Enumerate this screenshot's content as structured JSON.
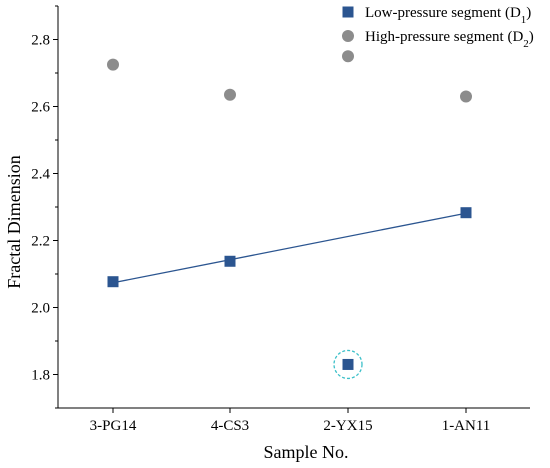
{
  "chart_data": {
    "type": "scatter",
    "categories": [
      "3-PG14",
      "4-CS3",
      "2-YX15",
      "1-AN11"
    ],
    "xlabel": "Sample No.",
    "ylabel": "Fractal Dimension",
    "ylim": [
      1.7,
      2.9
    ],
    "yticks": [
      1.8,
      2.0,
      2.2,
      2.4,
      2.6,
      2.8
    ],
    "grid": false,
    "legend_position": "top-right",
    "series": [
      {
        "name": "Low-pressure segment",
        "name_sub": "1",
        "marker": "square",
        "color": "#2b5590",
        "values": [
          2.077,
          2.138,
          1.83,
          2.283
        ]
      },
      {
        "name": "High-pressure segment",
        "name_sub": "2",
        "marker": "circle",
        "color": "#8c8c8c",
        "values": [
          2.725,
          2.635,
          2.75,
          2.63
        ]
      }
    ],
    "trend_line": {
      "series": 0,
      "color": "#2b5590",
      "exclude_index": 2
    },
    "highlight": {
      "series": 0,
      "index": 2,
      "color": "#3cc0c9",
      "style": "dashed-circle"
    }
  }
}
